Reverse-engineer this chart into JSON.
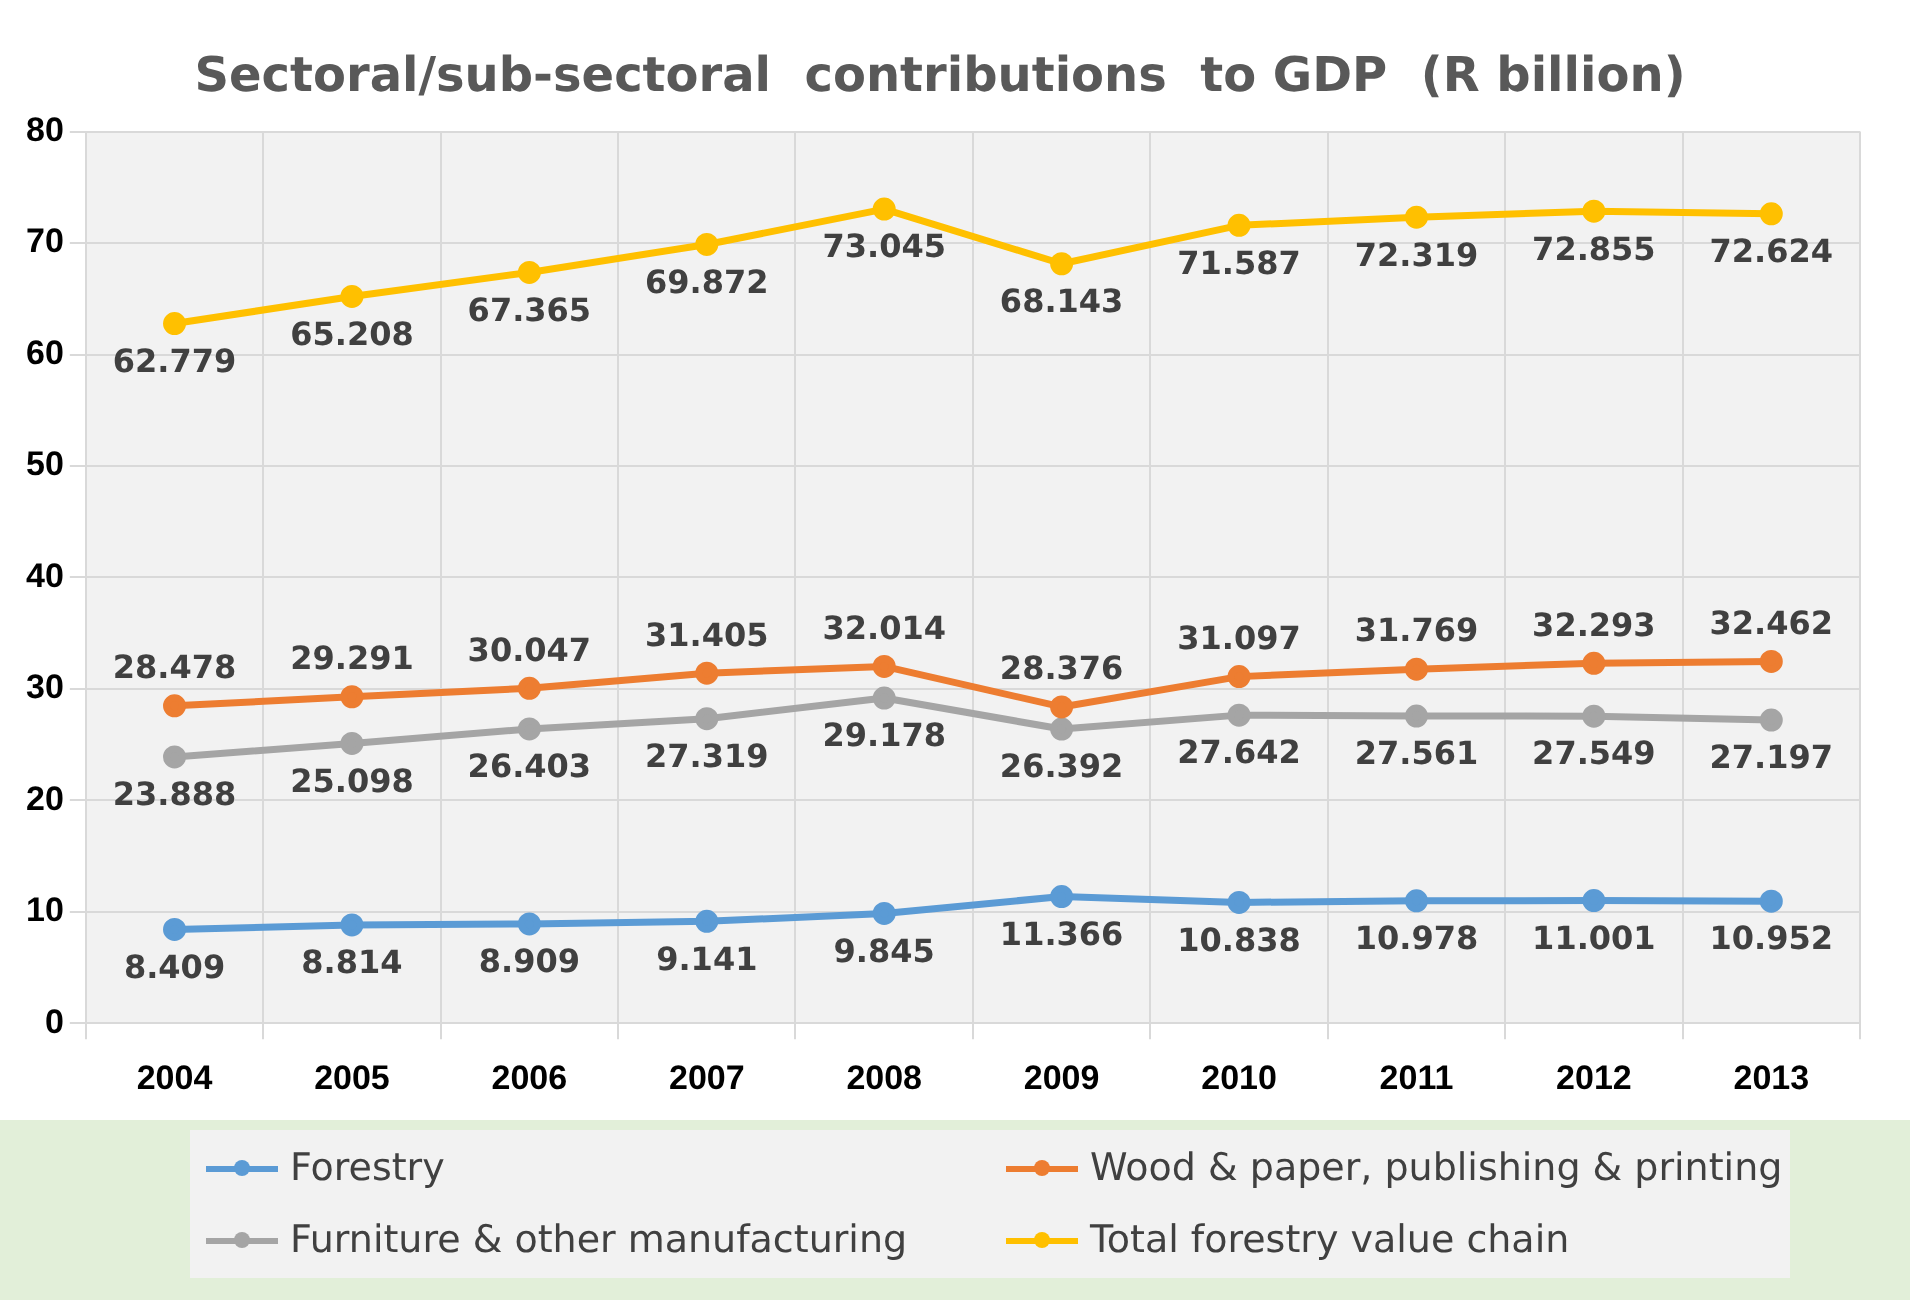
{
  "chart_data": {
    "type": "line",
    "title": "Sectoral/sub-sectoral  contributions  to GDP  (R billion)",
    "categories": [
      "2004",
      "2005",
      "2006",
      "2007",
      "2008",
      "2009",
      "2010",
      "2011",
      "2012",
      "2013"
    ],
    "series": [
      {
        "name": "Forestry",
        "color": "#5b9bd5",
        "values": [
          8.409,
          8.814,
          8.909,
          9.141,
          9.845,
          11.366,
          10.838,
          10.978,
          11.001,
          10.952
        ]
      },
      {
        "name": "Wood & paper, publishing & printing",
        "color": "#ed7d31",
        "values": [
          28.478,
          29.291,
          30.047,
          31.405,
          32.014,
          28.376,
          31.097,
          31.769,
          32.293,
          32.462
        ]
      },
      {
        "name": "Furniture & other manufacturing",
        "color": "#a5a5a5",
        "values": [
          23.888,
          25.098,
          26.403,
          27.319,
          29.178,
          26.392,
          27.642,
          27.561,
          27.549,
          27.197
        ]
      },
      {
        "name": "Total forestry value chain",
        "color": "#ffc000",
        "values": [
          62.779,
          65.208,
          67.365,
          69.872,
          73.045,
          68.143,
          71.587,
          72.319,
          72.855,
          72.624
        ]
      }
    ],
    "ylim": [
      0,
      80
    ],
    "yticks": [
      0,
      10,
      20,
      30,
      40,
      50,
      60,
      70,
      80
    ],
    "grid": true,
    "legend": "bottom",
    "marker": "circle",
    "line_style": "solid",
    "data_labels": true
  }
}
